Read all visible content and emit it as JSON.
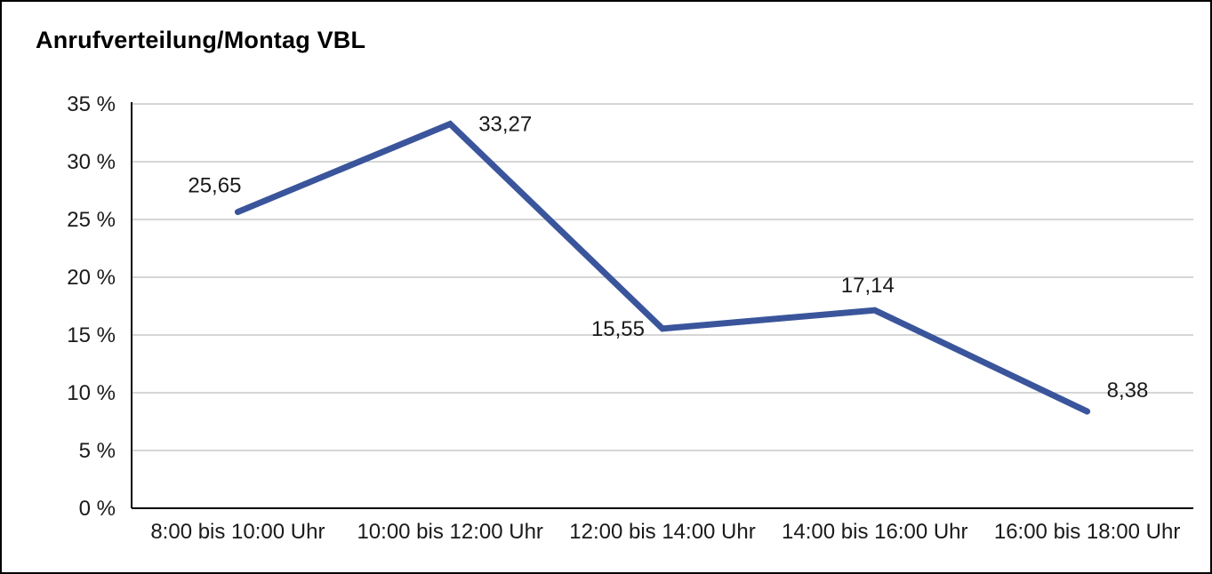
{
  "title": "Anrufverteilung/Montag VBL",
  "colors": {
    "line": "#3A559B",
    "grid": "#c9c9c9",
    "axis": "#000000",
    "text": "#1a1a1a",
    "border": "#000000",
    "background": "#ffffff"
  },
  "chart_data": {
    "type": "line",
    "title": "Anrufverteilung/Montag VBL",
    "categories": [
      "8:00 bis 10:00 Uhr",
      "10:00 bis 12:00 Uhr",
      "12:00 bis 14:00 Uhr",
      "14:00 bis 16:00 Uhr",
      "16:00 bis 18:00 Uhr"
    ],
    "values": [
      25.65,
      33.27,
      15.55,
      17.14,
      8.38
    ],
    "value_labels": [
      "25,65",
      "33,27",
      "15,55",
      "17,14",
      "8,38"
    ],
    "ytick_labels": [
      "0 %",
      "5 %",
      "10 %",
      "15 %",
      "20 %",
      "25 %",
      "30 %",
      "35 %"
    ],
    "ytick_values": [
      0,
      5,
      10,
      15,
      20,
      25,
      30,
      35
    ],
    "ylim": [
      0,
      35
    ],
    "xlabel": "",
    "ylabel": "",
    "grid": true,
    "legend": "none"
  }
}
